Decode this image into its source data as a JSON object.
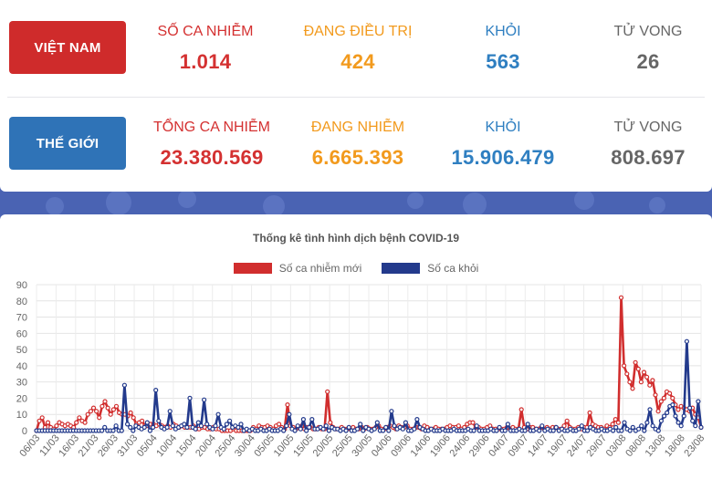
{
  "vietnam": {
    "badge": "VIỆT NAM",
    "stats": [
      {
        "label": "SỐ CA NHIỄM",
        "value": "1.014"
      },
      {
        "label": "ĐANG ĐIỀU TRỊ",
        "value": "424"
      },
      {
        "label": "KHỎI",
        "value": "563"
      },
      {
        "label": "TỬ VONG",
        "value": "26"
      }
    ]
  },
  "world": {
    "badge": "THẾ GIỚI",
    "stats": [
      {
        "label": "TỔNG CA NHIỄM",
        "value": "23.380.569"
      },
      {
        "label": "ĐANG NHIỄM",
        "value": "6.665.393"
      },
      {
        "label": "KHỎI",
        "value": "15.906.479"
      },
      {
        "label": "TỬ VONG",
        "value": "808.697"
      }
    ]
  },
  "colors": {
    "red": "#d43131",
    "orange": "#f29a1d",
    "blue": "#2f7fc1",
    "gray": "#666666",
    "badge_vn": "#cf2b2b",
    "badge_world": "#2f73b7",
    "series_new": "#d12e2e",
    "series_recovered": "#233a8c"
  },
  "chart_data": {
    "type": "line",
    "title": "Thống kê tình hình dịch bệnh COVID-19",
    "xlabel": "",
    "ylabel": "",
    "ylim": [
      0,
      90
    ],
    "yticks": [
      0,
      10,
      20,
      30,
      40,
      50,
      60,
      70,
      80,
      90
    ],
    "grid": true,
    "legend_position": "top",
    "tick_labels": [
      "06/03",
      "11/03",
      "16/03",
      "21/03",
      "26/03",
      "31/03",
      "05/04",
      "10/04",
      "15/04",
      "20/04",
      "25/04",
      "30/04",
      "05/05",
      "10/05",
      "15/05",
      "20/05",
      "25/05",
      "30/05",
      "04/06",
      "09/06",
      "14/06",
      "19/06",
      "24/06",
      "29/06",
      "04/07",
      "09/07",
      "14/07",
      "19/07",
      "24/07",
      "29/07",
      "03/08",
      "08/08",
      "13/08",
      "18/08",
      "23/08"
    ],
    "x_start": "06/03",
    "x_end": "23/08",
    "series": [
      {
        "name": "Số ca nhiễm mới",
        "values": [
          0,
          6,
          8,
          2,
          5,
          2,
          1,
          3,
          5,
          4,
          3,
          4,
          3,
          2,
          5,
          8,
          6,
          5,
          10,
          12,
          14,
          12,
          8,
          15,
          18,
          14,
          10,
          13,
          15,
          11,
          10,
          10,
          9,
          11,
          8,
          4,
          5,
          6,
          3,
          3,
          4,
          4,
          3,
          4,
          3,
          2,
          3,
          2,
          4,
          3,
          2,
          3,
          2,
          2,
          2,
          3,
          1,
          1,
          2,
          2,
          1,
          1,
          2,
          1,
          1,
          0,
          0,
          0,
          0,
          1,
          0,
          0,
          0,
          0,
          0,
          0,
          2,
          1,
          3,
          2,
          2,
          3,
          2,
          1,
          3,
          4,
          2,
          1,
          16,
          3,
          2,
          1,
          2,
          3,
          1,
          2,
          2,
          1,
          1,
          2,
          1,
          1,
          24,
          5,
          2,
          1,
          1,
          2,
          1,
          1,
          1,
          2,
          1,
          1,
          2,
          1,
          2,
          1,
          1,
          2,
          3,
          1,
          1,
          2,
          3,
          2,
          1,
          3,
          2,
          2,
          3,
          1,
          1,
          2,
          2,
          1,
          3,
          2,
          1,
          1,
          2,
          1,
          1,
          1,
          2,
          3,
          2,
          2,
          3,
          1,
          2,
          4,
          5,
          5,
          2,
          2,
          1,
          1,
          2,
          3,
          1,
          1,
          1,
          1,
          1,
          2,
          1,
          2,
          1,
          1,
          13,
          2,
          1,
          2,
          2,
          1,
          1,
          2,
          1,
          2,
          1,
          2,
          2,
          1,
          1,
          3,
          6,
          2,
          1,
          1,
          2,
          1,
          2,
          2,
          11,
          4,
          3,
          2,
          2,
          1,
          3,
          2,
          4,
          7,
          5,
          82,
          40,
          35,
          30,
          26,
          42,
          38,
          30,
          36,
          33,
          28,
          31,
          22,
          12,
          18,
          20,
          24,
          23,
          20,
          16,
          13,
          15,
          14,
          13,
          12,
          14,
          10,
          8,
          2
        ],
        "color": "#d12e2e"
      },
      {
        "name": "Số ca khỏi",
        "values": [
          0,
          0,
          0,
          0,
          0,
          0,
          0,
          0,
          0,
          0,
          0,
          0,
          0,
          0,
          0,
          0,
          0,
          0,
          0,
          0,
          0,
          0,
          0,
          0,
          2,
          0,
          0,
          0,
          3,
          0,
          0,
          28,
          4,
          2,
          0,
          3,
          2,
          1,
          2,
          5,
          0,
          2,
          25,
          6,
          2,
          1,
          2,
          12,
          3,
          1,
          2,
          3,
          4,
          2,
          20,
          2,
          1,
          5,
          3,
          19,
          4,
          2,
          1,
          3,
          10,
          2,
          1,
          4,
          6,
          2,
          3,
          2,
          4,
          0,
          1,
          0,
          1,
          0,
          0,
          1,
          0,
          0,
          1,
          0,
          0,
          0,
          1,
          0,
          3,
          10,
          1,
          0,
          3,
          1,
          7,
          0,
          2,
          7,
          1,
          1,
          2,
          1,
          3,
          0,
          2,
          1,
          1,
          0,
          1,
          0,
          2,
          0,
          0,
          1,
          4,
          0,
          2,
          1,
          0,
          1,
          5,
          0,
          0,
          2,
          0,
          12,
          3,
          1,
          2,
          1,
          5,
          0,
          0,
          1,
          7,
          2,
          1,
          0,
          0,
          1,
          0,
          0,
          0,
          1,
          0,
          0,
          0,
          1,
          0,
          0,
          0,
          0,
          1,
          0,
          0,
          3,
          0,
          0,
          0,
          0,
          1,
          0,
          0,
          2,
          0,
          0,
          4,
          0,
          0,
          0,
          1,
          0,
          0,
          4,
          0,
          0,
          1,
          0,
          3,
          0,
          1,
          0,
          0,
          2,
          0,
          1,
          0,
          0,
          1,
          0,
          0,
          1,
          3,
          0,
          0,
          2,
          1,
          0,
          0,
          1,
          0,
          0,
          1,
          0,
          2,
          0,
          0,
          5,
          1,
          0,
          2,
          0,
          1,
          3,
          0,
          5,
          13,
          3,
          1,
          0,
          6,
          9,
          11,
          15,
          16,
          9,
          5,
          3,
          9,
          55,
          14,
          6,
          3,
          18,
          2
        ],
        "color": "#233a8c"
      }
    ]
  }
}
